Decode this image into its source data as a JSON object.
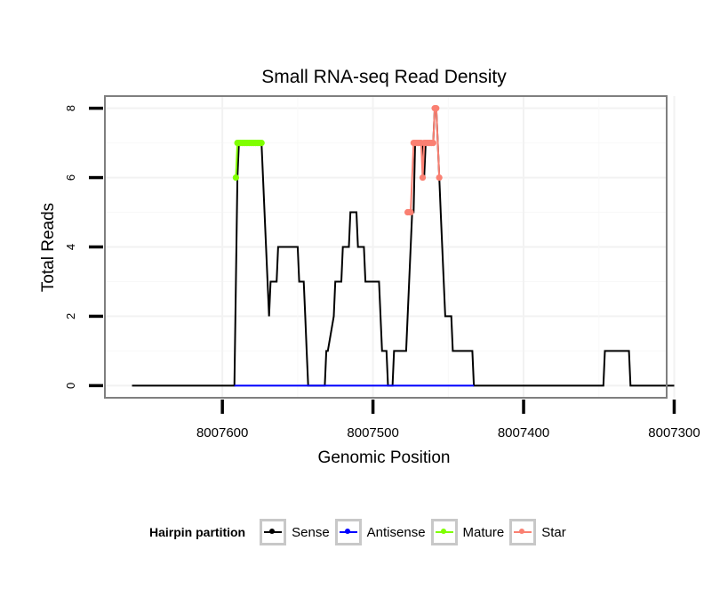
{
  "chart_data": {
    "type": "line",
    "title": "Small RNA-seq Read Density",
    "xlabel": "Genomic Position",
    "ylabel": "Total Reads",
    "x_reversed": true,
    "xlim": [
      8007305,
      8007678
    ],
    "ylim": [
      -0.35,
      8.35
    ],
    "xticks": [
      8007600,
      8007500,
      8007400,
      8007300
    ],
    "xtick_labels": [
      "8007600",
      "8007500",
      "8007400",
      "8007300"
    ],
    "yticks": [
      0,
      2,
      4,
      6,
      8
    ],
    "ytick_labels": [
      "0",
      "2",
      "4",
      "6",
      "8"
    ],
    "grid": true,
    "colors": {
      "Sense": "#000000",
      "Antisense": "#0000ff",
      "Mature": "#7fff00",
      "Star": "#fa8072",
      "panel_border": "#7f7f7f",
      "grid_major": "#f2f2f2"
    },
    "series": [
      {
        "name": "Sense",
        "kind": "line",
        "x": [
          8007660,
          8007592,
          8007591,
          8007590,
          8007589,
          8007574,
          8007573,
          8007572,
          8007571,
          8007570,
          8007569,
          8007568,
          8007564,
          8007563,
          8007550,
          8007549,
          8007546,
          8007545,
          8007544,
          8007543,
          8007532,
          8007531,
          8007530,
          8007526,
          8007525,
          8007521,
          8007520,
          8007516,
          8007515,
          8007511,
          8007510,
          8007506,
          8007505,
          8007496,
          8007495,
          8007494,
          8007491,
          8007490,
          8007487,
          8007486,
          8007478,
          8007477,
          8007476,
          8007475,
          8007474,
          8007473,
          8007472,
          8007467,
          8007466,
          8007465,
          8007464,
          8007463,
          8007462,
          8007460,
          8007459,
          8007458,
          8007456,
          8007455,
          8007454,
          8007453,
          8007452,
          8007448,
          8007447,
          8007440,
          8007439,
          8007434,
          8007433,
          8007400,
          8007350,
          8007347,
          8007346,
          8007330,
          8007329,
          8007300
        ],
        "y": [
          0,
          0,
          3,
          6,
          7,
          7,
          6,
          5,
          4,
          3,
          2,
          3,
          3,
          4,
          4,
          3,
          3,
          2,
          1,
          0,
          0,
          1,
          1,
          2,
          3,
          3,
          4,
          4,
          5,
          5,
          4,
          4,
          3,
          3,
          2,
          1,
          1,
          0,
          0,
          1,
          1,
          2,
          3,
          4,
          5,
          5,
          7,
          7,
          6,
          7,
          7,
          7,
          7,
          7,
          8,
          8,
          6,
          5,
          4,
          3,
          2,
          2,
          1,
          1,
          1,
          1,
          0,
          0,
          0,
          0,
          1,
          1,
          0,
          0
        ]
      },
      {
        "name": "Antisense",
        "kind": "line",
        "x": [
          8007592,
          8007433
        ],
        "y": [
          0,
          0
        ]
      },
      {
        "name": "Mature",
        "kind": "points",
        "x": [
          8007591,
          8007590,
          8007589,
          8007588,
          8007587,
          8007586,
          8007585,
          8007584,
          8007583,
          8007582,
          8007581,
          8007580,
          8007579,
          8007578,
          8007577,
          8007576,
          8007575,
          8007574
        ],
        "y": [
          6,
          7,
          7,
          7,
          7,
          7,
          7,
          7,
          7,
          7,
          7,
          7,
          7,
          7,
          7,
          7,
          7,
          7
        ]
      },
      {
        "name": "Star",
        "kind": "points",
        "x": [
          8007477,
          8007476,
          8007475,
          8007473,
          8007472,
          8007471,
          8007470,
          8007469,
          8007468,
          8007467,
          8007466,
          8007465,
          8007464,
          8007463,
          8007462,
          8007461,
          8007460,
          8007459,
          8007458,
          8007456
        ],
        "y": [
          5,
          5,
          5,
          7,
          7,
          7,
          7,
          7,
          7,
          6,
          7,
          7,
          7,
          7,
          7,
          7,
          7,
          8,
          8,
          6
        ]
      }
    ],
    "legend": {
      "title": "Hairpin partition",
      "placement": "bottom",
      "entries": [
        "Sense",
        "Antisense",
        "Mature",
        "Star"
      ]
    }
  }
}
